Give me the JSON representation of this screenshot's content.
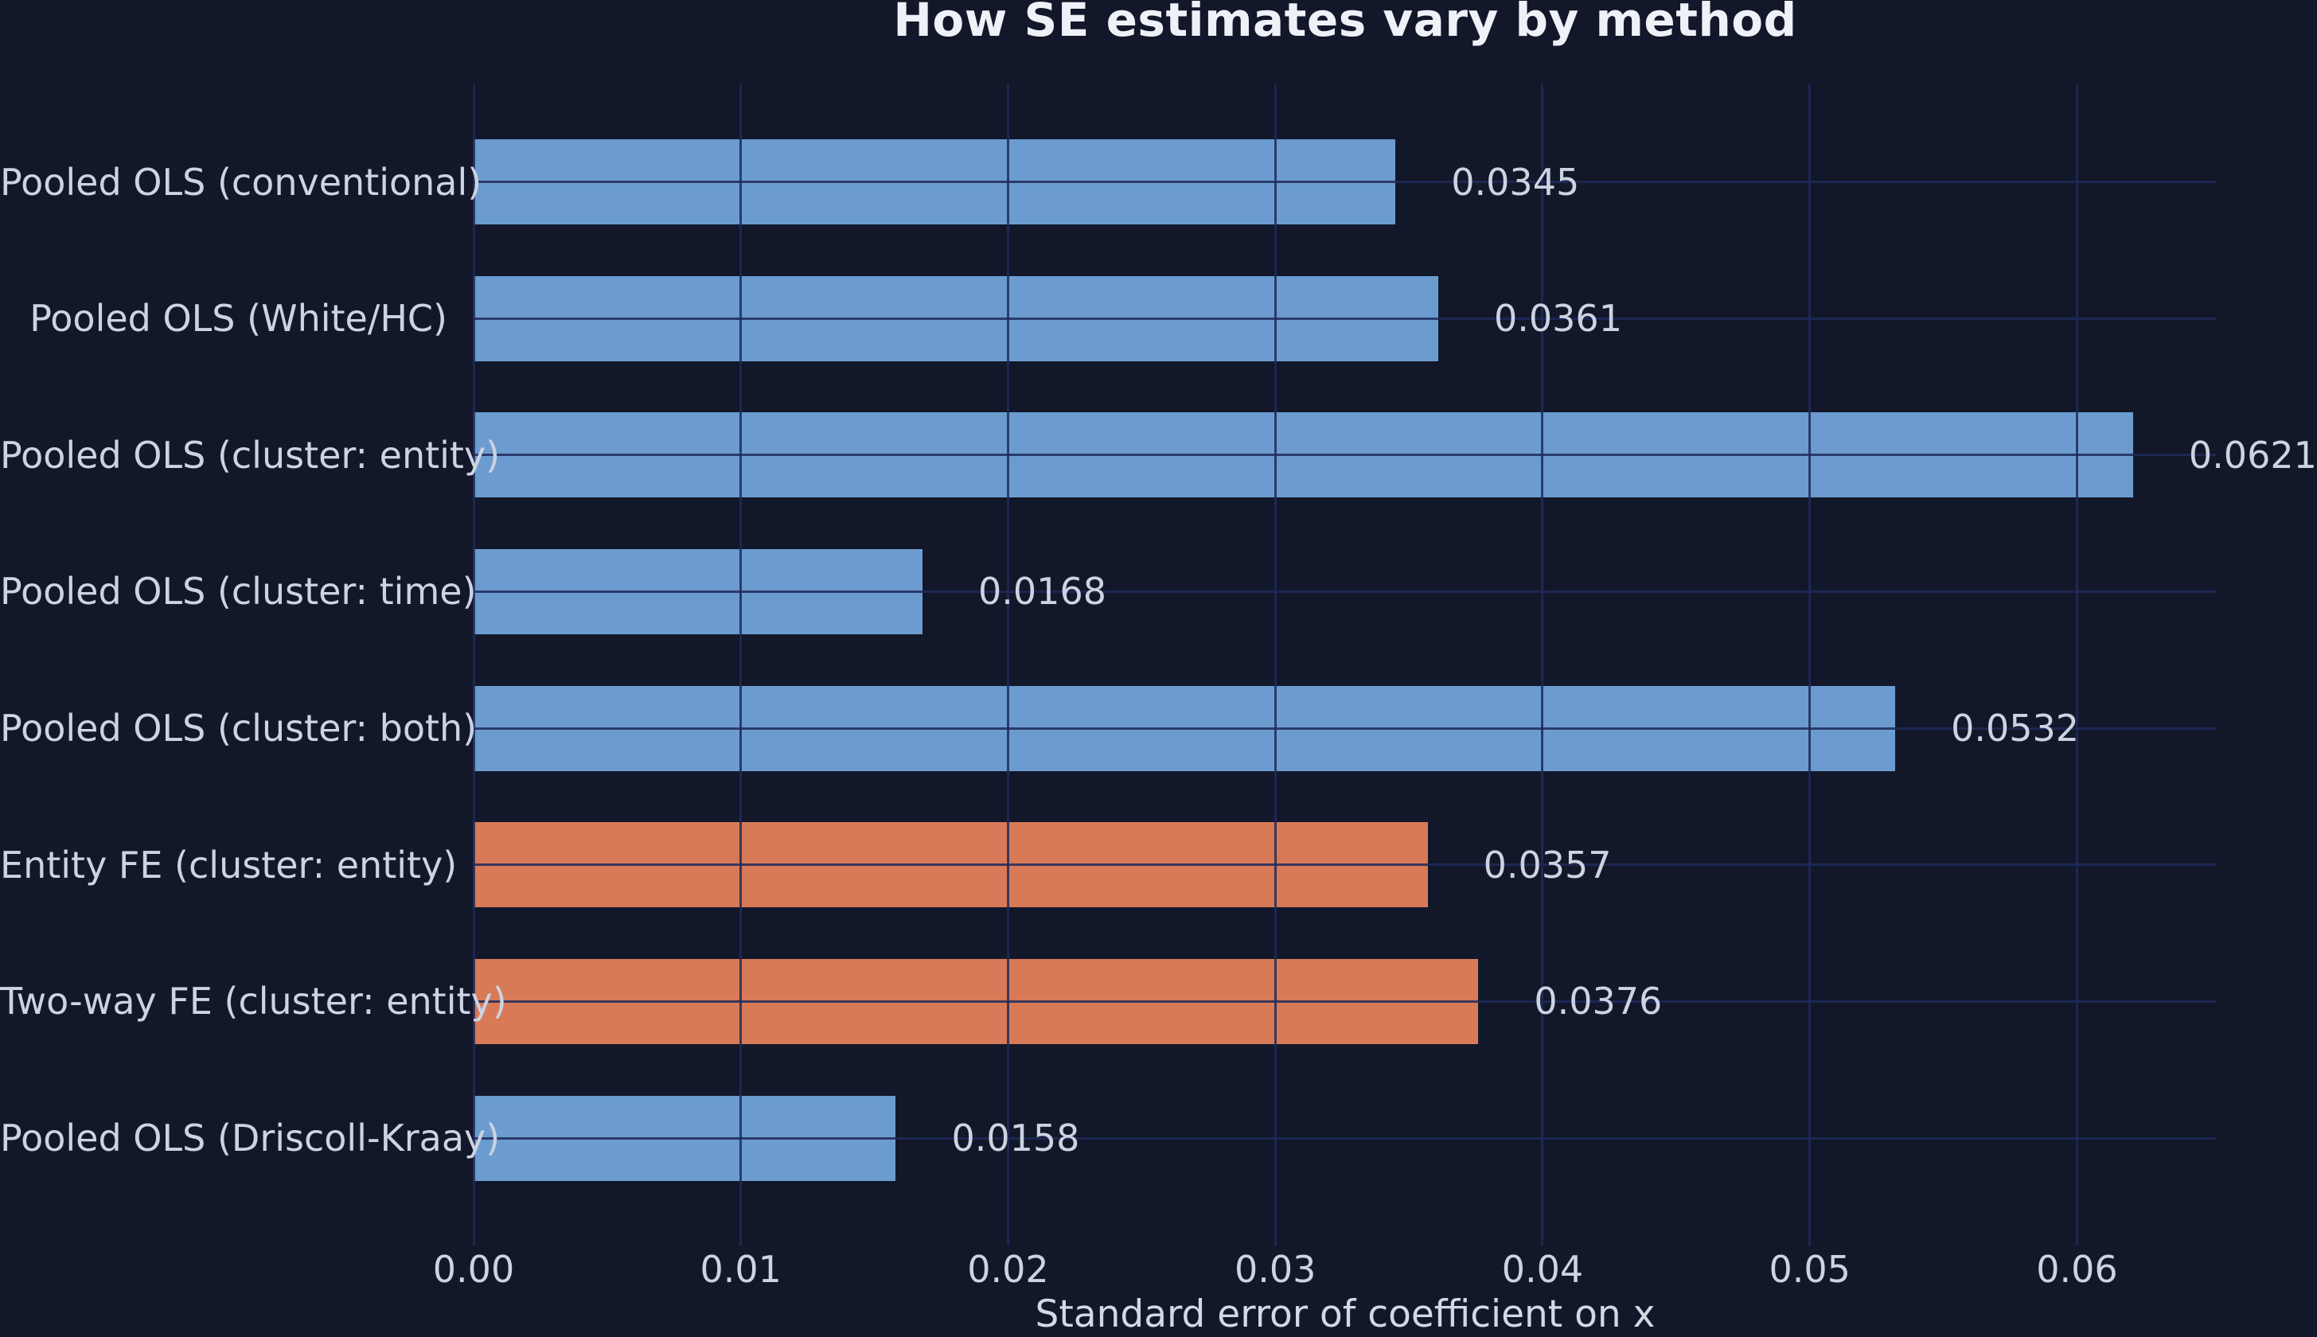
{
  "chart_data": {
    "type": "bar",
    "orientation": "horizontal",
    "title": "How SE estimates vary by method",
    "xlabel": "Standard error of coefficient on x",
    "categories": [
      "Pooled OLS (conventional)",
      "Pooled OLS (White/HC)",
      "Pooled OLS (cluster: entity)",
      "Pooled OLS (cluster: time)",
      "Pooled OLS (cluster: both)",
      "Entity FE (cluster: entity)",
      "Two-way FE (cluster: entity)",
      "Pooled OLS (Driscoll-Kraay)"
    ],
    "values": [
      0.0345,
      0.0361,
      0.0621,
      0.0168,
      0.0532,
      0.0357,
      0.0376,
      0.0158
    ],
    "value_labels": [
      "0.0345",
      "0.0361",
      "0.0621",
      "0.0168",
      "0.0532",
      "0.0357",
      "0.0376",
      "0.0158"
    ],
    "bar_colors": [
      "#6c9ccf",
      "#6c9ccf",
      "#6c9ccf",
      "#6c9ccf",
      "#6c9ccf",
      "#d87a58",
      "#d87a58",
      "#6c9ccf"
    ],
    "xticks": [
      0.0,
      0.01,
      0.02,
      0.03,
      0.04,
      0.05,
      0.06
    ],
    "xtick_labels": [
      "0.00",
      "0.01",
      "0.02",
      "0.03",
      "0.04",
      "0.05",
      "0.06"
    ],
    "xlim": [
      0,
      0.0652
    ],
    "grid": true,
    "grid_above_bars": true,
    "legend": null
  },
  "colors": {
    "background": "#121829",
    "bar_blue": "#6c9ccf",
    "bar_orange": "#d87a58",
    "gridline": "#1e2a5a",
    "text": "#ccd3e1",
    "title_text": "#eef1f7"
  }
}
